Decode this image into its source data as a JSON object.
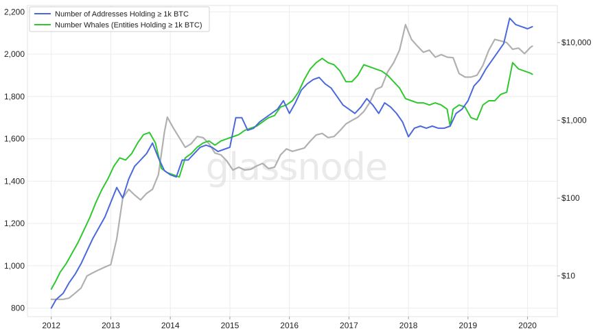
{
  "chart_data": {
    "type": "line",
    "title": "",
    "xlabel": "",
    "ylabel": "",
    "watermark": "glassnode",
    "x_ticks": [
      "2012",
      "2013",
      "2014",
      "2015",
      "2016",
      "2017",
      "2018",
      "2019",
      "2020"
    ],
    "xlim": [
      2011.6,
      2020.5
    ],
    "y_left": {
      "ticks": [
        "800",
        "1,000",
        "1,200",
        "1,400",
        "1,600",
        "1,800",
        "2,000",
        "2,200"
      ],
      "range": [
        760,
        2230
      ]
    },
    "y_right": {
      "ticks": [
        "$10",
        "$100",
        "$1,000",
        "$10,000"
      ],
      "scale": "log",
      "range": [
        3,
        30000
      ]
    },
    "grid": true,
    "legend_position": "top-left",
    "series": [
      {
        "name": "Number of Addresses Holding ≥ 1k BTC",
        "color": "#4a68dc",
        "axis": "left",
        "points": [
          [
            2012.0,
            800
          ],
          [
            2012.08,
            840
          ],
          [
            2012.2,
            870
          ],
          [
            2012.3,
            920
          ],
          [
            2012.4,
            960
          ],
          [
            2012.5,
            1010
          ],
          [
            2012.6,
            1070
          ],
          [
            2012.7,
            1130
          ],
          [
            2012.8,
            1180
          ],
          [
            2012.9,
            1230
          ],
          [
            2013.0,
            1300
          ],
          [
            2013.1,
            1370
          ],
          [
            2013.2,
            1320
          ],
          [
            2013.3,
            1410
          ],
          [
            2013.4,
            1470
          ],
          [
            2013.5,
            1500
          ],
          [
            2013.6,
            1530
          ],
          [
            2013.7,
            1580
          ],
          [
            2013.8,
            1510
          ],
          [
            2013.9,
            1450
          ],
          [
            2014.0,
            1430
          ],
          [
            2014.1,
            1420
          ],
          [
            2014.2,
            1500
          ],
          [
            2014.3,
            1500
          ],
          [
            2014.4,
            1530
          ],
          [
            2014.5,
            1560
          ],
          [
            2014.6,
            1570
          ],
          [
            2014.7,
            1560
          ],
          [
            2014.8,
            1540
          ],
          [
            2014.9,
            1550
          ],
          [
            2015.0,
            1560
          ],
          [
            2015.1,
            1700
          ],
          [
            2015.2,
            1700
          ],
          [
            2015.3,
            1640
          ],
          [
            2015.4,
            1650
          ],
          [
            2015.5,
            1680
          ],
          [
            2015.6,
            1700
          ],
          [
            2015.7,
            1720
          ],
          [
            2015.8,
            1740
          ],
          [
            2015.9,
            1780
          ],
          [
            2016.0,
            1720
          ],
          [
            2016.1,
            1770
          ],
          [
            2016.2,
            1830
          ],
          [
            2016.3,
            1860
          ],
          [
            2016.4,
            1880
          ],
          [
            2016.5,
            1890
          ],
          [
            2016.6,
            1860
          ],
          [
            2016.7,
            1840
          ],
          [
            2016.8,
            1800
          ],
          [
            2016.9,
            1760
          ],
          [
            2017.0,
            1740
          ],
          [
            2017.1,
            1720
          ],
          [
            2017.2,
            1750
          ],
          [
            2017.3,
            1790
          ],
          [
            2017.4,
            1760
          ],
          [
            2017.5,
            1720
          ],
          [
            2017.6,
            1770
          ],
          [
            2017.7,
            1750
          ],
          [
            2017.8,
            1720
          ],
          [
            2017.9,
            1680
          ],
          [
            2018.0,
            1610
          ],
          [
            2018.1,
            1650
          ],
          [
            2018.2,
            1660
          ],
          [
            2018.3,
            1650
          ],
          [
            2018.4,
            1660
          ],
          [
            2018.5,
            1650
          ],
          [
            2018.6,
            1650
          ],
          [
            2018.7,
            1660
          ],
          [
            2018.8,
            1720
          ],
          [
            2018.9,
            1740
          ],
          [
            2019.0,
            1780
          ],
          [
            2019.1,
            1850
          ],
          [
            2019.2,
            1880
          ],
          [
            2019.3,
            1930
          ],
          [
            2019.4,
            1970
          ],
          [
            2019.5,
            2010
          ],
          [
            2019.6,
            2050
          ],
          [
            2019.7,
            2170
          ],
          [
            2019.8,
            2140
          ],
          [
            2019.9,
            2130
          ],
          [
            2020.0,
            2120
          ],
          [
            2020.08,
            2130
          ]
        ]
      },
      {
        "name": "Number Whales (Entities Holding ≥ 1k BTC)",
        "color": "#2ec82e",
        "axis": "left",
        "points": [
          [
            2012.0,
            890
          ],
          [
            2012.08,
            930
          ],
          [
            2012.15,
            970
          ],
          [
            2012.25,
            1010
          ],
          [
            2012.35,
            1060
          ],
          [
            2012.45,
            1110
          ],
          [
            2012.55,
            1170
          ],
          [
            2012.65,
            1230
          ],
          [
            2012.75,
            1300
          ],
          [
            2012.85,
            1360
          ],
          [
            2012.95,
            1410
          ],
          [
            2013.05,
            1470
          ],
          [
            2013.15,
            1510
          ],
          [
            2013.25,
            1500
          ],
          [
            2013.35,
            1530
          ],
          [
            2013.45,
            1580
          ],
          [
            2013.55,
            1620
          ],
          [
            2013.65,
            1630
          ],
          [
            2013.75,
            1580
          ],
          [
            2013.85,
            1460
          ],
          [
            2013.95,
            1440
          ],
          [
            2014.05,
            1430
          ],
          [
            2014.15,
            1420
          ],
          [
            2014.25,
            1510
          ],
          [
            2014.35,
            1530
          ],
          [
            2014.45,
            1560
          ],
          [
            2014.55,
            1580
          ],
          [
            2014.65,
            1590
          ],
          [
            2014.75,
            1570
          ],
          [
            2014.85,
            1590
          ],
          [
            2014.95,
            1600
          ],
          [
            2015.05,
            1610
          ],
          [
            2015.15,
            1620
          ],
          [
            2015.25,
            1640
          ],
          [
            2015.35,
            1650
          ],
          [
            2015.45,
            1660
          ],
          [
            2015.55,
            1680
          ],
          [
            2015.65,
            1700
          ],
          [
            2015.75,
            1710
          ],
          [
            2015.85,
            1750
          ],
          [
            2015.95,
            1760
          ],
          [
            2016.05,
            1780
          ],
          [
            2016.15,
            1820
          ],
          [
            2016.25,
            1880
          ],
          [
            2016.35,
            1930
          ],
          [
            2016.45,
            1960
          ],
          [
            2016.55,
            1980
          ],
          [
            2016.65,
            1960
          ],
          [
            2016.75,
            1950
          ],
          [
            2016.85,
            1920
          ],
          [
            2016.95,
            1870
          ],
          [
            2017.05,
            1870
          ],
          [
            2017.15,
            1900
          ],
          [
            2017.25,
            1950
          ],
          [
            2017.35,
            1940
          ],
          [
            2017.45,
            1930
          ],
          [
            2017.55,
            1920
          ],
          [
            2017.65,
            1900
          ],
          [
            2017.75,
            1870
          ],
          [
            2017.85,
            1840
          ],
          [
            2017.95,
            1790
          ],
          [
            2018.05,
            1780
          ],
          [
            2018.15,
            1770
          ],
          [
            2018.25,
            1770
          ],
          [
            2018.35,
            1760
          ],
          [
            2018.45,
            1770
          ],
          [
            2018.55,
            1760
          ],
          [
            2018.65,
            1740
          ],
          [
            2018.7,
            1660
          ],
          [
            2018.75,
            1740
          ],
          [
            2018.85,
            1760
          ],
          [
            2018.95,
            1750
          ],
          [
            2019.05,
            1700
          ],
          [
            2019.15,
            1690
          ],
          [
            2019.25,
            1760
          ],
          [
            2019.35,
            1780
          ],
          [
            2019.45,
            1780
          ],
          [
            2019.55,
            1810
          ],
          [
            2019.65,
            1820
          ],
          [
            2019.75,
            1960
          ],
          [
            2019.85,
            1930
          ],
          [
            2019.95,
            1920
          ],
          [
            2020.05,
            1910
          ],
          [
            2020.08,
            1905
          ]
        ]
      },
      {
        "name": "",
        "color": "#b0b0b0",
        "axis": "right",
        "points": [
          [
            2012.0,
            5
          ],
          [
            2012.1,
            5
          ],
          [
            2012.2,
            5
          ],
          [
            2012.3,
            5.2
          ],
          [
            2012.4,
            6
          ],
          [
            2012.5,
            7
          ],
          [
            2012.6,
            10
          ],
          [
            2012.7,
            11
          ],
          [
            2012.8,
            12
          ],
          [
            2012.9,
            13
          ],
          [
            2013.0,
            14
          ],
          [
            2013.1,
            30
          ],
          [
            2013.2,
            100
          ],
          [
            2013.3,
            130
          ],
          [
            2013.4,
            110
          ],
          [
            2013.5,
            95
          ],
          [
            2013.6,
            115
          ],
          [
            2013.7,
            130
          ],
          [
            2013.8,
            200
          ],
          [
            2013.9,
            700
          ],
          [
            2013.95,
            1100
          ],
          [
            2014.05,
            800
          ],
          [
            2014.15,
            600
          ],
          [
            2014.25,
            450
          ],
          [
            2014.35,
            500
          ],
          [
            2014.45,
            620
          ],
          [
            2014.55,
            600
          ],
          [
            2014.65,
            500
          ],
          [
            2014.75,
            380
          ],
          [
            2014.85,
            360
          ],
          [
            2014.95,
            300
          ],
          [
            2015.05,
            230
          ],
          [
            2015.15,
            250
          ],
          [
            2015.25,
            230
          ],
          [
            2015.35,
            235
          ],
          [
            2015.45,
            260
          ],
          [
            2015.55,
            280
          ],
          [
            2015.65,
            240
          ],
          [
            2015.75,
            250
          ],
          [
            2015.85,
            360
          ],
          [
            2015.95,
            430
          ],
          [
            2016.05,
            400
          ],
          [
            2016.15,
            420
          ],
          [
            2016.25,
            440
          ],
          [
            2016.35,
            540
          ],
          [
            2016.45,
            650
          ],
          [
            2016.55,
            680
          ],
          [
            2016.65,
            600
          ],
          [
            2016.75,
            620
          ],
          [
            2016.85,
            740
          ],
          [
            2016.95,
            900
          ],
          [
            2017.05,
            1000
          ],
          [
            2017.15,
            1100
          ],
          [
            2017.25,
            1300
          ],
          [
            2017.35,
            1700
          ],
          [
            2017.45,
            2500
          ],
          [
            2017.55,
            2700
          ],
          [
            2017.65,
            4200
          ],
          [
            2017.75,
            5500
          ],
          [
            2017.85,
            8000
          ],
          [
            2017.95,
            17000
          ],
          [
            2018.05,
            11000
          ],
          [
            2018.15,
            9000
          ],
          [
            2018.25,
            7500
          ],
          [
            2018.35,
            8000
          ],
          [
            2018.45,
            6500
          ],
          [
            2018.55,
            7000
          ],
          [
            2018.65,
            6500
          ],
          [
            2018.75,
            6400
          ],
          [
            2018.85,
            4000
          ],
          [
            2018.95,
            3600
          ],
          [
            2019.05,
            3600
          ],
          [
            2019.15,
            3800
          ],
          [
            2019.25,
            5100
          ],
          [
            2019.35,
            8000
          ],
          [
            2019.45,
            11000
          ],
          [
            2019.55,
            10500
          ],
          [
            2019.65,
            10000
          ],
          [
            2019.75,
            8200
          ],
          [
            2019.85,
            8500
          ],
          [
            2019.95,
            7200
          ],
          [
            2020.05,
            8700
          ],
          [
            2020.08,
            9000
          ]
        ]
      }
    ]
  }
}
